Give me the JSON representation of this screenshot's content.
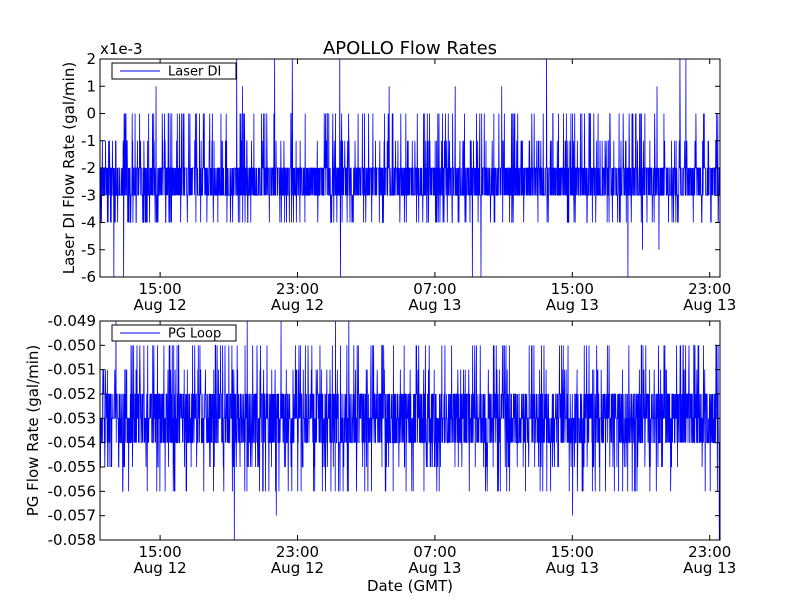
{
  "chart_data": {
    "title": "APOLLO Flow Rates",
    "x_axis_label": "Date (GMT)",
    "panels": [
      {
        "type": "line",
        "ylabel": "Laser DI Flow Rate (gal/min)",
        "scale_label": "x1e-3",
        "ylim": [
          -6,
          2
        ],
        "yticks": [
          "-6",
          "-5",
          "-4",
          "-3",
          "-2",
          "-1",
          "0",
          "1",
          "2"
        ],
        "ytick_values": [
          -6,
          -5,
          -4,
          -3,
          -2,
          -1,
          0,
          1,
          2
        ],
        "xticks": [
          {
            "time": "15:00",
            "date": "Aug 12",
            "hours": 15
          },
          {
            "time": "23:00",
            "date": "Aug 12",
            "hours": 23
          },
          {
            "time": "07:00",
            "date": "Aug 13",
            "hours": 31
          },
          {
            "time": "15:00",
            "date": "Aug 13",
            "hours": 39
          },
          {
            "time": "23:00",
            "date": "Aug 13",
            "hours": 47
          }
        ],
        "xlim_hours": [
          11.5,
          47.6
        ],
        "series": [
          {
            "name": "Laser DI",
            "color": "#0000ff",
            "baseline_range": [
              -3,
              -2
            ],
            "typical_range": [
              -4,
              0
            ],
            "min_observed": -6,
            "max_observed": 2,
            "units_scale": 0.001
          }
        ]
      },
      {
        "type": "line",
        "ylabel": "PG Flow Rate (gal/min)",
        "scale_label": "",
        "ylim": [
          -0.058,
          -0.049
        ],
        "yticks": [
          "-0.058",
          "-0.057",
          "-0.056",
          "-0.055",
          "-0.054",
          "-0.053",
          "-0.052",
          "-0.051",
          "-0.050",
          "-0.049"
        ],
        "ytick_values": [
          -0.058,
          -0.057,
          -0.056,
          -0.055,
          -0.054,
          -0.053,
          -0.052,
          -0.051,
          -0.05,
          -0.049
        ],
        "xticks": [
          {
            "time": "15:00",
            "date": "Aug 12",
            "hours": 15
          },
          {
            "time": "23:00",
            "date": "Aug 12",
            "hours": 23
          },
          {
            "time": "07:00",
            "date": "Aug 13",
            "hours": 31
          },
          {
            "time": "15:00",
            "date": "Aug 13",
            "hours": 39
          },
          {
            "time": "23:00",
            "date": "Aug 13",
            "hours": 47
          }
        ],
        "xlim_hours": [
          11.5,
          47.6
        ],
        "series": [
          {
            "name": "PG Loop",
            "color": "#0000ff",
            "baseline_range": [
              -0.054,
              -0.052
            ],
            "typical_range": [
              -0.056,
              -0.05
            ],
            "min_observed": -0.058,
            "max_observed": -0.049,
            "units_scale": 1
          }
        ]
      }
    ]
  }
}
